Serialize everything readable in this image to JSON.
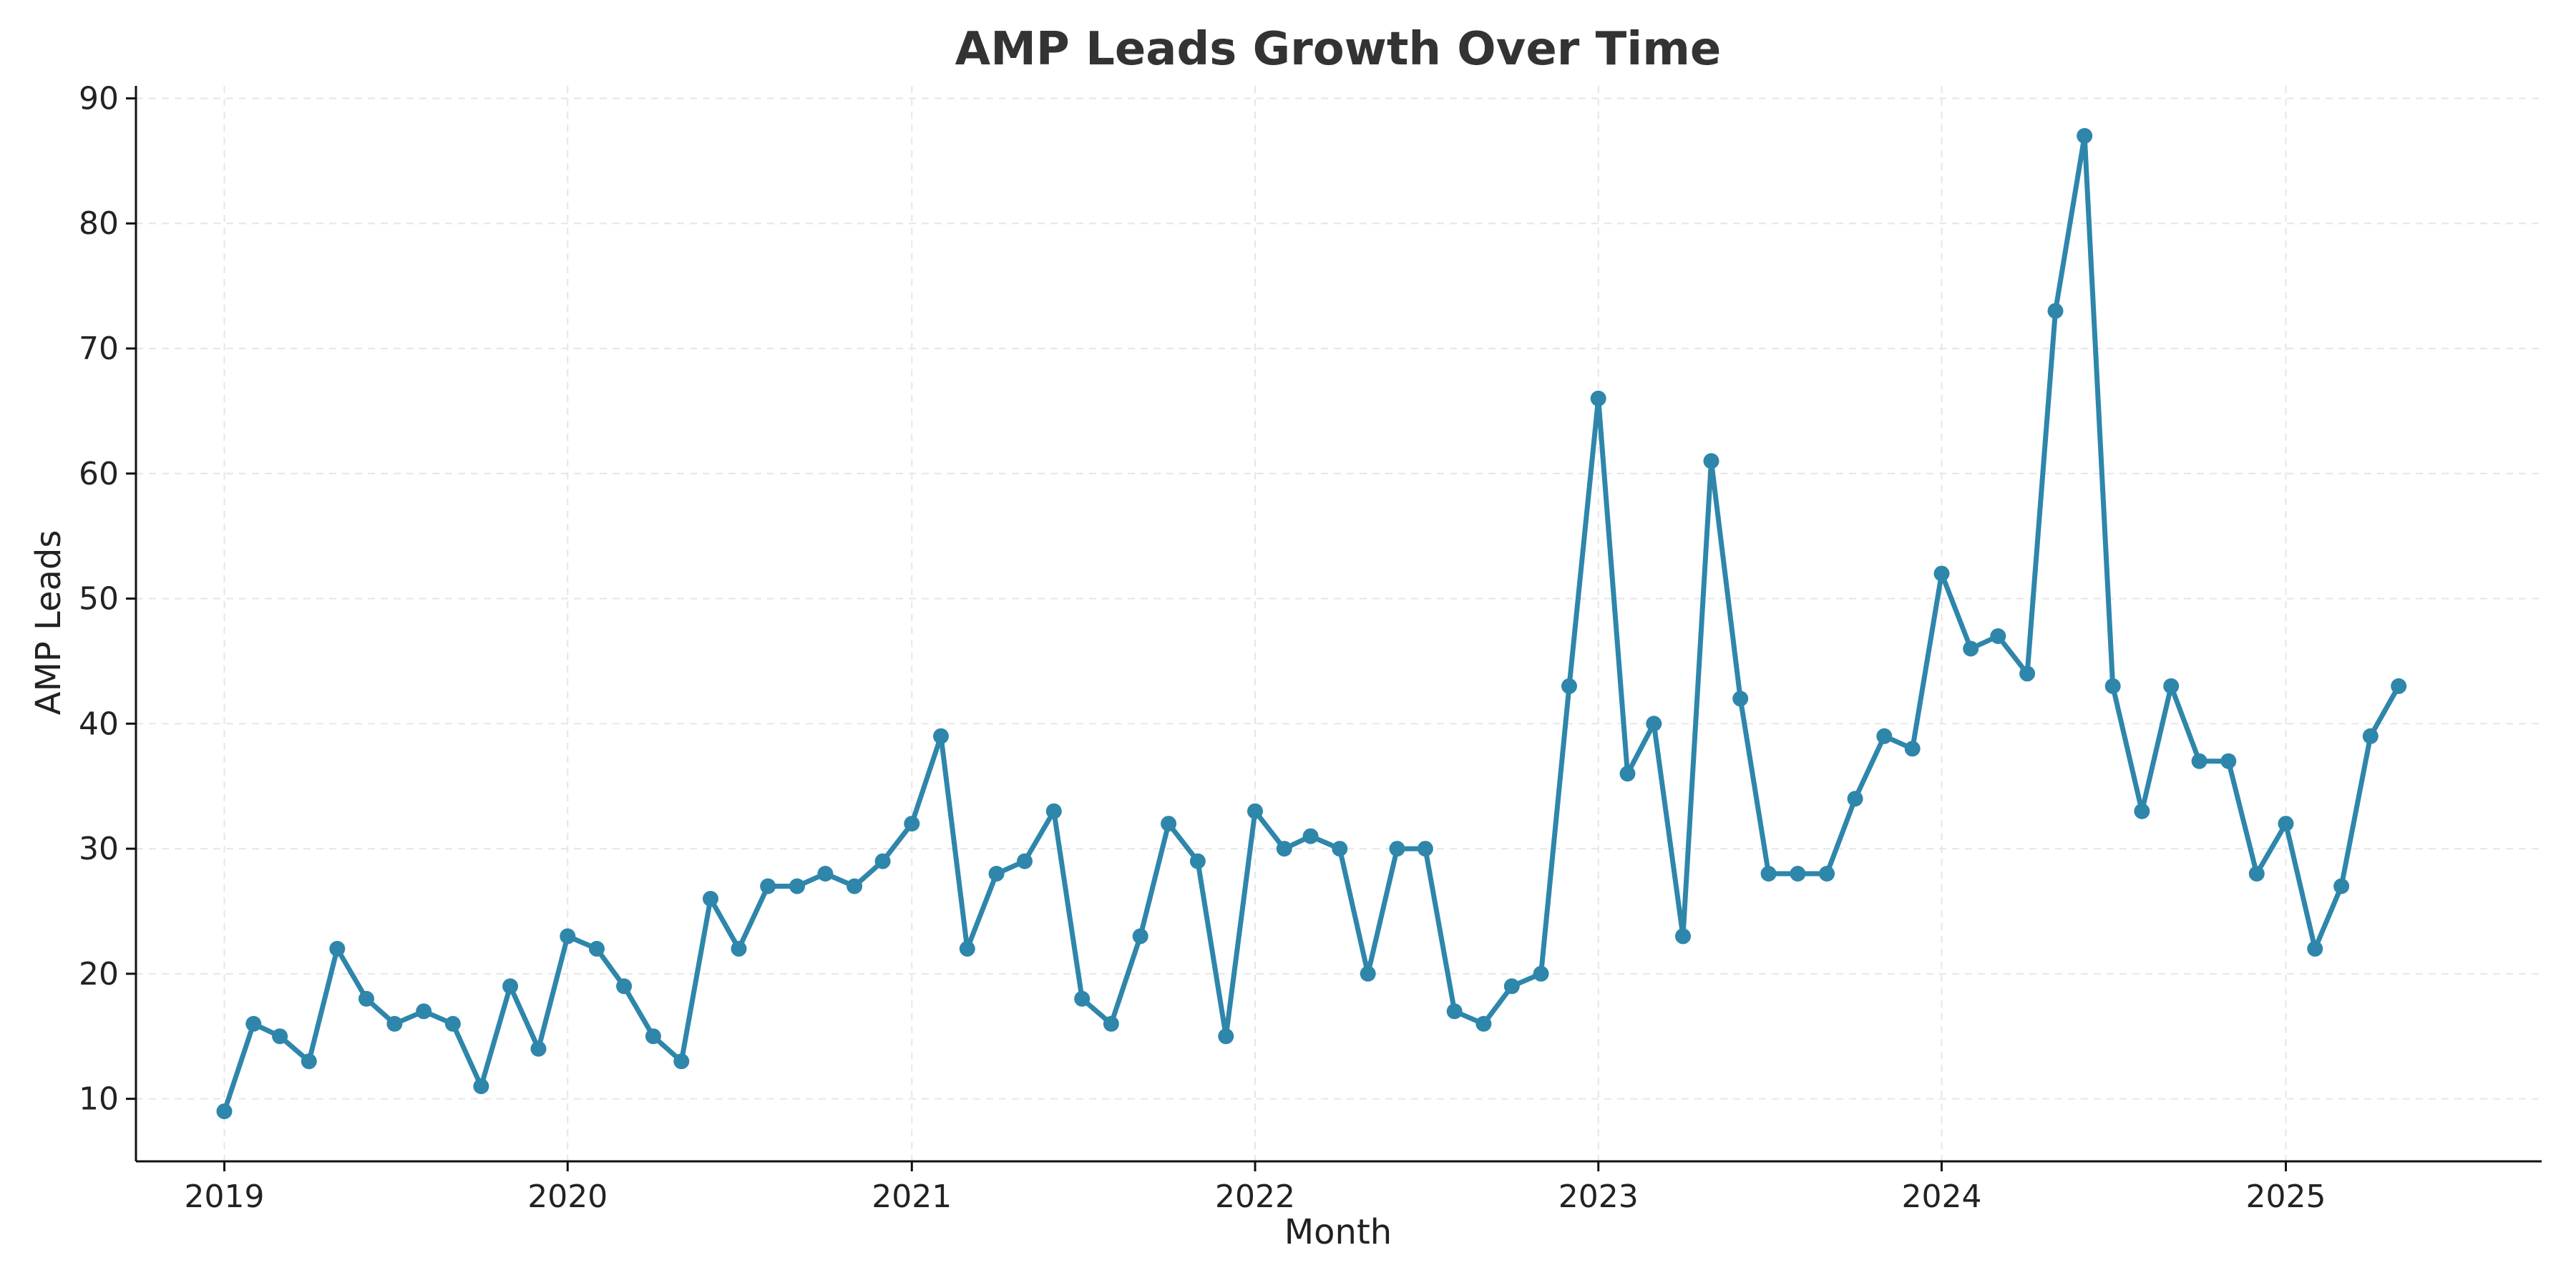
{
  "chart_data": {
    "type": "line",
    "title": "AMP Leads Growth Over Time",
    "xlabel": "Month",
    "ylabel": "AMP Leads",
    "x_axis": "date",
    "x_start": "2019-01",
    "x_ticks": [
      "2019",
      "2020",
      "2021",
      "2022",
      "2023",
      "2024",
      "2025"
    ],
    "y_ticks": [
      10,
      20,
      30,
      40,
      50,
      60,
      70,
      80,
      90
    ],
    "xlim": [
      "2018-09-29",
      "2025-09-30"
    ],
    "ylim": [
      5,
      91
    ],
    "grid": true,
    "series_color": "#2e86ab",
    "x": [
      "2019-01",
      "2019-02",
      "2019-03",
      "2019-04",
      "2019-05",
      "2019-06",
      "2019-07",
      "2019-08",
      "2019-09",
      "2019-10",
      "2019-11",
      "2019-12",
      "2020-01",
      "2020-02",
      "2020-03",
      "2020-04",
      "2020-05",
      "2020-06",
      "2020-07",
      "2020-08",
      "2020-09",
      "2020-10",
      "2020-11",
      "2020-12",
      "2021-01",
      "2021-02",
      "2021-03",
      "2021-04",
      "2021-05",
      "2021-06",
      "2021-07",
      "2021-08",
      "2021-09",
      "2021-10",
      "2021-11",
      "2021-12",
      "2022-01",
      "2022-02",
      "2022-03",
      "2022-04",
      "2022-05",
      "2022-06",
      "2022-07",
      "2022-08",
      "2022-09",
      "2022-10",
      "2022-11",
      "2022-12",
      "2023-01",
      "2023-02",
      "2023-03",
      "2023-04",
      "2023-05",
      "2023-06",
      "2023-07",
      "2023-08",
      "2023-09",
      "2023-10",
      "2023-11",
      "2023-12",
      "2024-01",
      "2024-02",
      "2024-03",
      "2024-04",
      "2024-05",
      "2024-06",
      "2024-07",
      "2024-08",
      "2024-09",
      "2024-10",
      "2024-11",
      "2024-12",
      "2025-01",
      "2025-02",
      "2025-03",
      "2025-04",
      "2025-05"
    ],
    "series": [
      {
        "values": [
          9,
          16,
          15,
          13,
          22,
          18,
          16,
          17,
          16,
          11,
          19,
          14,
          23,
          22,
          19,
          15,
          13,
          26,
          22,
          27,
          27,
          28,
          27,
          29,
          32,
          39,
          22,
          28,
          29,
          33,
          18,
          16,
          23,
          32,
          29,
          15,
          33,
          30,
          31,
          30,
          20,
          30,
          30,
          17,
          16,
          19,
          20,
          43,
          66,
          36,
          40,
          23,
          61,
          42,
          28,
          28,
          28,
          34,
          39,
          38,
          52,
          46,
          47,
          44,
          73,
          87,
          43,
          33,
          43,
          37,
          37,
          28,
          32,
          22,
          27,
          39,
          43
        ]
      }
    ]
  }
}
